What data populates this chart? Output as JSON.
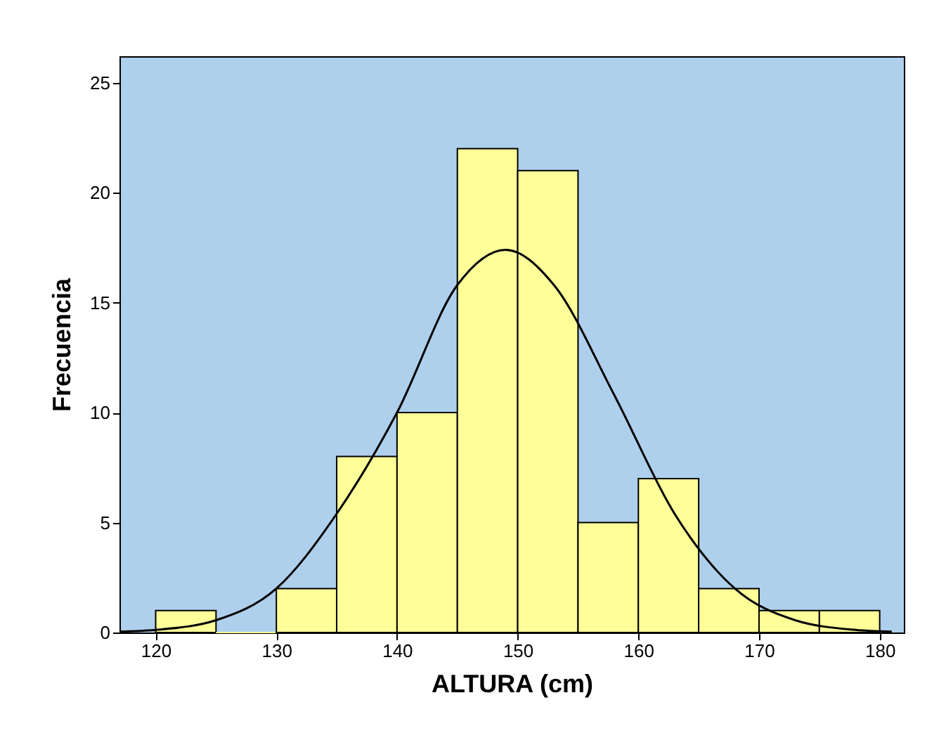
{
  "chart_data": {
    "type": "histogram",
    "xlabel": "ALTURA (cm)",
    "ylabel": "Frecuencia",
    "bins": [
      120,
      125,
      130,
      135,
      140,
      145,
      150,
      155,
      160,
      165,
      170,
      175,
      180
    ],
    "values": [
      1,
      0,
      2,
      8,
      10,
      22,
      21,
      5,
      7,
      2,
      1,
      1
    ],
    "color": "#ffff99",
    "series": [
      {
        "type": "line",
        "color": "#000000",
        "x": [
          117,
          120,
          125,
          130,
          135,
          140,
          145,
          149,
          153,
          158,
          163,
          168,
          173,
          178,
          181
        ],
        "values": [
          0.04,
          0.12,
          0.56,
          2.0,
          5.4,
          10.0,
          15.8,
          17.4,
          15.8,
          10.8,
          5.4,
          2.0,
          0.56,
          0.12,
          0.04
        ]
      }
    ],
    "xlim": [
      117,
      182
    ],
    "xticks": [
      120,
      130,
      140,
      150,
      160,
      170,
      180
    ],
    "ylim": [
      0,
      26.2
    ],
    "yticks": [
      0,
      5,
      10,
      15,
      20,
      25
    ],
    "grid": false
  }
}
